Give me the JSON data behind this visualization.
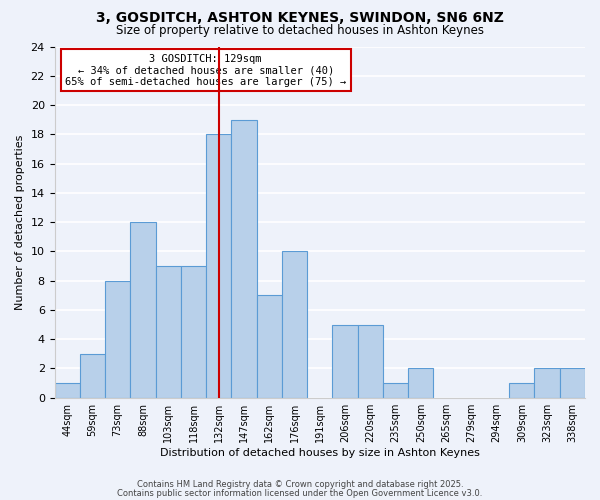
{
  "title": "3, GOSDITCH, ASHTON KEYNES, SWINDON, SN6 6NZ",
  "subtitle": "Size of property relative to detached houses in Ashton Keynes",
  "xlabel": "Distribution of detached houses by size in Ashton Keynes",
  "ylabel": "Number of detached properties",
  "bar_labels": [
    "44sqm",
    "59sqm",
    "73sqm",
    "88sqm",
    "103sqm",
    "118sqm",
    "132sqm",
    "147sqm",
    "162sqm",
    "176sqm",
    "191sqm",
    "206sqm",
    "220sqm",
    "235sqm",
    "250sqm",
    "265sqm",
    "279sqm",
    "294sqm",
    "309sqm",
    "323sqm",
    "338sqm"
  ],
  "bar_values": [
    1,
    3,
    8,
    12,
    9,
    9,
    18,
    19,
    7,
    10,
    0,
    5,
    5,
    1,
    2,
    0,
    0,
    0,
    1,
    2,
    2
  ],
  "bar_color": "#b8d0ea",
  "bar_edge_color": "#5b9bd5",
  "background_color": "#eef2fa",
  "grid_color": "#ffffff",
  "ylim": [
    0,
    24
  ],
  "yticks": [
    0,
    2,
    4,
    6,
    8,
    10,
    12,
    14,
    16,
    18,
    20,
    22,
    24
  ],
  "annotation_text": "3 GOSDITCH: 129sqm\n← 34% of detached houses are smaller (40)\n65% of semi-detached houses are larger (75) →",
  "vline_x_index": 6,
  "vline_color": "#cc0000",
  "footer_line1": "Contains HM Land Registry data © Crown copyright and database right 2025.",
  "footer_line2": "Contains public sector information licensed under the Open Government Licence v3.0."
}
